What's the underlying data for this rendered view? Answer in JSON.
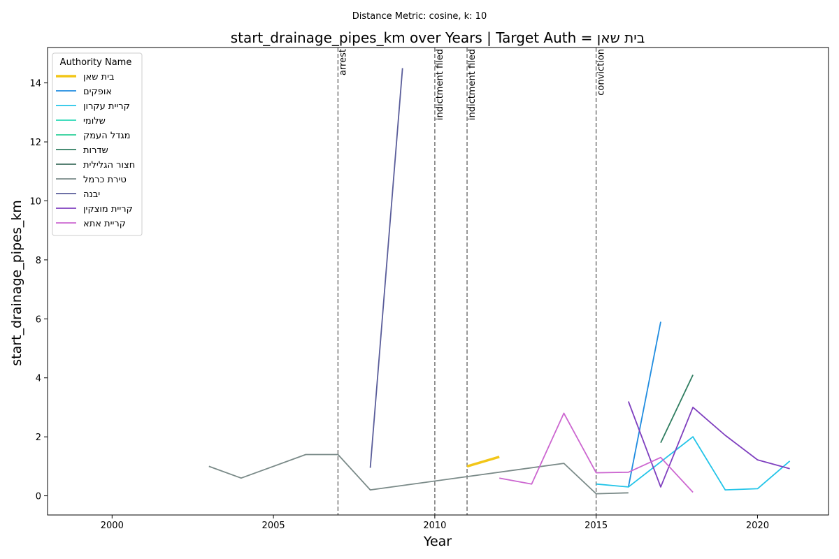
{
  "chart_data": {
    "type": "line",
    "suptitle": "Distance Metric: cosine, k: 10",
    "title": "start_drainage_pipes_km over Years | Target Auth = בית שאן",
    "xlabel": "Year",
    "ylabel": "start_drainage_pipes_km",
    "xlim": [
      1998,
      2022.2
    ],
    "ylim": [
      -0.65,
      15.2
    ],
    "xticks": [
      2000,
      2005,
      2010,
      2015,
      2020
    ],
    "yticks": [
      0,
      2,
      4,
      6,
      8,
      10,
      12,
      14
    ],
    "grid": false,
    "legend": {
      "title": "Authority Name",
      "placement": "top-left"
    },
    "events": [
      {
        "x": 2007,
        "label": "arrest"
      },
      {
        "x": 2010,
        "label": "indictment filed"
      },
      {
        "x": 2011,
        "label": "indictment filed"
      },
      {
        "x": 2015,
        "label": "conviction"
      }
    ],
    "series": [
      {
        "name": "בית שאן",
        "color": "#f2c618",
        "target": true,
        "points": [
          [
            2011,
            1.0
          ],
          [
            2012,
            1.32
          ]
        ]
      },
      {
        "name": "אופקים",
        "color": "#1f8ce0",
        "points": [
          [
            2016,
            0.3
          ],
          [
            2017,
            5.9
          ]
        ]
      },
      {
        "name": "קריית עקרון",
        "color": "#22c4e8",
        "points": [
          [
            2015,
            0.4
          ],
          [
            2016,
            0.3
          ],
          [
            2018,
            2.0
          ],
          [
            2019,
            0.2
          ],
          [
            2020,
            0.24
          ],
          [
            2021,
            1.18
          ]
        ]
      },
      {
        "name": "שלומי",
        "color": "#28d8b4",
        "points": []
      },
      {
        "name": "מגדל העמק",
        "color": "#2ccf98",
        "points": []
      },
      {
        "name": "שדרות",
        "color": "#2f7d60",
        "points": [
          [
            2017,
            1.8
          ],
          [
            2018,
            4.1
          ]
        ]
      },
      {
        "name": "חצור הגלילית",
        "color": "#3f6f5f",
        "points": []
      },
      {
        "name": "טירת כרמל",
        "color": "#7a8a88",
        "points": [
          [
            2003,
            1.0
          ],
          [
            2004,
            0.6
          ],
          [
            2006,
            1.4
          ],
          [
            2007,
            1.4
          ],
          [
            2008,
            0.2
          ],
          [
            2014,
            1.1
          ],
          [
            2015,
            0.07
          ],
          [
            2016,
            0.1
          ]
        ]
      },
      {
        "name": "יבנה",
        "color": "#5a5d9a",
        "points": [
          [
            2008,
            0.95
          ],
          [
            2009,
            14.5
          ]
        ]
      },
      {
        "name": "קריית מוצקין",
        "color": "#7f3fbf",
        "points": [
          [
            2016,
            3.2
          ],
          [
            2017,
            0.3
          ],
          [
            2018,
            3.0
          ],
          [
            2019,
            2.05
          ],
          [
            2020,
            1.22
          ],
          [
            2021,
            0.92
          ]
        ]
      },
      {
        "name": "קריית אתא",
        "color": "#cc66d0",
        "points": [
          [
            2012,
            0.6
          ],
          [
            2013,
            0.4
          ],
          [
            2014,
            2.8
          ],
          [
            2015,
            0.78
          ],
          [
            2016,
            0.8
          ],
          [
            2017,
            1.3
          ],
          [
            2018,
            0.12
          ]
        ]
      }
    ]
  }
}
